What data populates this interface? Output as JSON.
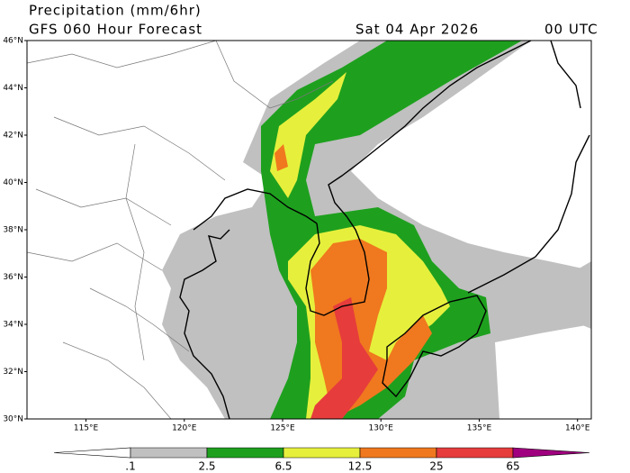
{
  "header": {
    "title": "Precipitation (mm/6hr)",
    "subtitle": "GFS 060 Hour Forecast",
    "date": "Sat 04 Apr 2026",
    "time": "00 UTC"
  },
  "map": {
    "lonlim": [
      112.0,
      140.7
    ],
    "latlim": [
      30,
      46
    ],
    "lat_ticks": [
      {
        "value": 30,
        "label": "30°N"
      },
      {
        "value": 32,
        "label": "32°N"
      },
      {
        "value": 34,
        "label": "34°N"
      },
      {
        "value": 36,
        "label": "36°N"
      },
      {
        "value": 38,
        "label": "38°N"
      },
      {
        "value": 40,
        "label": "40°N"
      },
      {
        "value": 42,
        "label": "42°N"
      },
      {
        "value": 44,
        "label": "44°N"
      },
      {
        "value": 46,
        "label": "46°N"
      }
    ],
    "lon_ticks": [
      {
        "value": 115,
        "label": "115°E"
      },
      {
        "value": 120,
        "label": "120°E"
      },
      {
        "value": 125,
        "label": "125°E"
      },
      {
        "value": 130,
        "label": "130°E"
      },
      {
        "value": 135,
        "label": "135°E"
      },
      {
        "value": 140,
        "label": "140°E"
      }
    ]
  },
  "colorbar": {
    "levels": [
      {
        "value": 0.1,
        "label": ".1"
      },
      2.5,
      6.5,
      12.5,
      25,
      65
    ],
    "colors": [
      "#ffffff",
      "#c0c0c0",
      "#1ea01e",
      "#e6f03c",
      "#f0781e",
      "#e63c3c",
      "#a0007f"
    ]
  }
}
